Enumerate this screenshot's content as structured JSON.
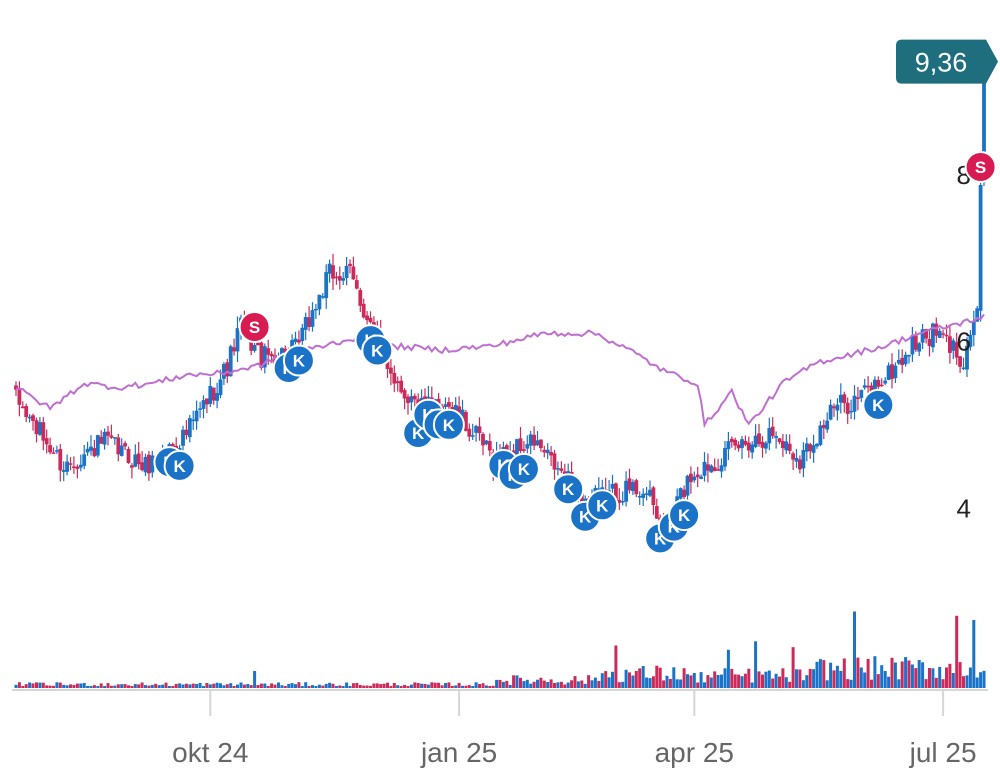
{
  "chart_data": {
    "type": "candlestick",
    "title": "",
    "xlabel": "",
    "ylabel": "",
    "x_tick_labels": [
      "okt 24",
      "jan 25",
      "apr 25",
      "jul 25"
    ],
    "y_tick_labels": [
      "4",
      "6",
      "8"
    ],
    "y_ticks": [
      4,
      6,
      8
    ],
    "ylim": [
      2.9,
      10.1
    ],
    "last_price": "9,36",
    "colors": {
      "up": "#1a73c6",
      "down": "#cc2a5a",
      "benchmark": "#bf6fd0",
      "buy_marker": "#1a73c6",
      "sell_marker": "#d81b52",
      "price_tag": "#1e6e7e"
    },
    "anchors": [
      [
        0,
        5.3
      ],
      [
        14,
        4.5
      ],
      [
        26,
        4.8
      ],
      [
        38,
        4.5
      ],
      [
        50,
        4.9
      ],
      [
        62,
        5.7
      ],
      [
        66,
        6.2
      ],
      [
        72,
        5.8
      ],
      [
        82,
        5.9
      ],
      [
        92,
        6.8
      ],
      [
        98,
        6.8
      ],
      [
        106,
        6.0
      ],
      [
        112,
        5.5
      ],
      [
        118,
        5.2
      ],
      [
        126,
        5.3
      ],
      [
        140,
        4.6
      ],
      [
        152,
        4.8
      ],
      [
        160,
        4.4
      ],
      [
        168,
        4.1
      ],
      [
        176,
        4.2
      ],
      [
        184,
        4.25
      ],
      [
        190,
        3.75
      ],
      [
        198,
        4.4
      ],
      [
        206,
        4.6
      ],
      [
        214,
        4.8
      ],
      [
        222,
        4.9
      ],
      [
        230,
        4.6
      ],
      [
        240,
        5.2
      ],
      [
        246,
        5.3
      ],
      [
        256,
        5.6
      ],
      [
        264,
        6.0
      ],
      [
        270,
        6.1
      ],
      [
        278,
        5.8
      ],
      [
        282,
        6.4
      ],
      [
        284,
        9.36
      ]
    ],
    "benchmark_anchors": [
      [
        0,
        5.45
      ],
      [
        10,
        5.2
      ],
      [
        20,
        5.5
      ],
      [
        30,
        5.45
      ],
      [
        40,
        5.5
      ],
      [
        50,
        5.6
      ],
      [
        60,
        5.62
      ],
      [
        70,
        5.7
      ],
      [
        80,
        5.85
      ],
      [
        95,
        6.0
      ],
      [
        100,
        6.05
      ],
      [
        110,
        5.95
      ],
      [
        125,
        5.9
      ],
      [
        140,
        5.95
      ],
      [
        155,
        6.1
      ],
      [
        170,
        6.1
      ],
      [
        180,
        5.9
      ],
      [
        190,
        5.65
      ],
      [
        200,
        5.5
      ],
      [
        202,
        5.0
      ],
      [
        210,
        5.4
      ],
      [
        215,
        5.0
      ],
      [
        225,
        5.5
      ],
      [
        235,
        5.75
      ],
      [
        245,
        5.85
      ],
      [
        255,
        5.95
      ],
      [
        265,
        6.1
      ],
      [
        275,
        6.2
      ],
      [
        284,
        6.3
      ]
    ],
    "volume_spikes": [
      [
        70,
        0.2
      ],
      [
        176,
        0.5
      ],
      [
        209,
        0.45
      ],
      [
        217,
        0.55
      ],
      [
        228,
        0.48
      ],
      [
        246,
        0.9
      ],
      [
        276,
        0.85
      ],
      [
        281,
        0.8
      ]
    ],
    "trade_markers": [
      {
        "label": "S",
        "type": "sell",
        "i": 70
      },
      {
        "label": "K",
        "type": "buy",
        "i": 45
      },
      {
        "label": "K",
        "type": "buy",
        "i": 48
      },
      {
        "label": "K",
        "type": "buy",
        "i": 80
      },
      {
        "label": "K",
        "type": "buy",
        "i": 83
      },
      {
        "label": "K",
        "type": "buy",
        "i": 104
      },
      {
        "label": "K",
        "type": "buy",
        "i": 106
      },
      {
        "label": "K",
        "type": "buy",
        "i": 118
      },
      {
        "label": "K",
        "type": "buy",
        "i": 121
      },
      {
        "label": "K",
        "type": "buy",
        "i": 124
      },
      {
        "label": "K",
        "type": "buy",
        "i": 127
      },
      {
        "label": "K",
        "type": "buy",
        "i": 143
      },
      {
        "label": "K",
        "type": "buy",
        "i": 146
      },
      {
        "label": "K",
        "type": "buy",
        "i": 149
      },
      {
        "label": "K",
        "type": "buy",
        "i": 162
      },
      {
        "label": "K",
        "type": "buy",
        "i": 167
      },
      {
        "label": "K",
        "type": "buy",
        "i": 172
      },
      {
        "label": "K",
        "type": "buy",
        "i": 189
      },
      {
        "label": "K",
        "type": "buy",
        "i": 193
      },
      {
        "label": "K",
        "type": "buy",
        "i": 196
      },
      {
        "label": "K",
        "type": "buy",
        "i": 253
      },
      {
        "label": "S",
        "type": "sell",
        "i": 283
      }
    ]
  }
}
